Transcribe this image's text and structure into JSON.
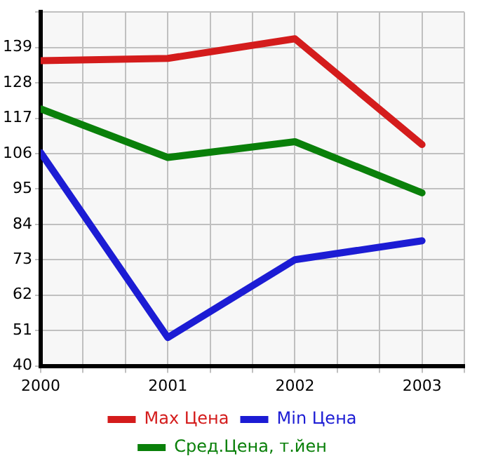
{
  "chart_data": {
    "type": "line",
    "x": [
      2000,
      2001,
      2002,
      2003
    ],
    "series": [
      {
        "name": "Max Цена",
        "color": "#d41c1c",
        "values": [
          134.9,
          135.6,
          141.7,
          108.8
        ]
      },
      {
        "name": "Min Цена",
        "color": "#1c1cd4",
        "values": [
          106.3,
          48.8,
          73,
          78.9
        ]
      },
      {
        "name": "Сред.Цена, т.йен",
        "color": "#0a800a",
        "values": [
          119.9,
          104.8,
          109.7,
          93.8
        ]
      }
    ],
    "xlim": [
      2000,
      2003.333
    ],
    "xticks": [
      2000,
      {
        "value": 2000.333,
        "label": null
      },
      {
        "value": 2000.667,
        "label": null
      },
      2001,
      {
        "value": 2001.333,
        "label": null
      },
      {
        "value": 2001.667,
        "label": null
      },
      2002,
      {
        "value": 2002.333,
        "label": null
      },
      {
        "value": 2002.667,
        "label": null
      },
      2003,
      {
        "value": 2003.333,
        "label": null
      }
    ],
    "ylim": [
      40,
      150
    ],
    "yticks": [
      40,
      51,
      62,
      73,
      84,
      95,
      106,
      117,
      128,
      139,
      {
        "value": 150,
        "label": null
      }
    ],
    "grid": true,
    "legend": "bottom",
    "marker": "none",
    "line_style": "solid"
  }
}
